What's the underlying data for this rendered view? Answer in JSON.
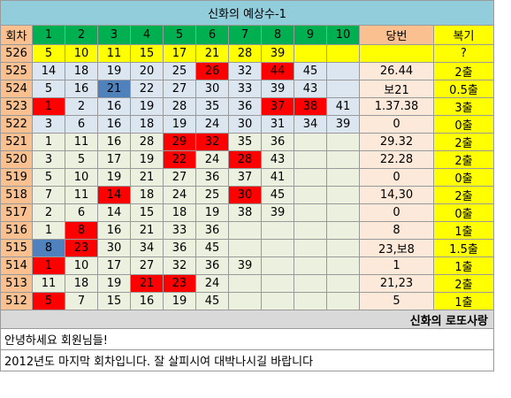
{
  "title": "신화의 예상수-1",
  "headers": {
    "round": "회차",
    "numbers": [
      "1",
      "2",
      "3",
      "4",
      "5",
      "6",
      "7",
      "8",
      "9",
      "10"
    ],
    "win": "당번",
    "reward": "복기"
  },
  "rows": [
    {
      "round": "526",
      "nums": [
        "5",
        "10",
        "11",
        "15",
        "17",
        "21",
        "28",
        "39",
        "",
        ""
      ],
      "win": "",
      "reward": "?",
      "hl": [
        "",
        "",
        "",
        "",
        "",
        "",
        "",
        "",
        "",
        ""
      ],
      "style": "first"
    },
    {
      "round": "525",
      "nums": [
        "14",
        "18",
        "19",
        "20",
        "25",
        "26",
        "32",
        "44",
        "45",
        ""
      ],
      "win": "26.44",
      "reward": "2출",
      "hl": [
        "",
        "",
        "",
        "",
        "",
        "r",
        "",
        "r",
        "",
        ""
      ],
      "style": "blue"
    },
    {
      "round": "524",
      "nums": [
        "5",
        "16",
        "21",
        "22",
        "27",
        "30",
        "33",
        "39",
        "43",
        ""
      ],
      "win": "보21",
      "reward": "0.5출",
      "hl": [
        "",
        "",
        "b",
        "",
        "",
        "",
        "",
        "",
        "",
        ""
      ],
      "style": "blue"
    },
    {
      "round": "523",
      "nums": [
        "1",
        "2",
        "16",
        "19",
        "28",
        "35",
        "36",
        "37",
        "38",
        "41"
      ],
      "win": "1.37.38",
      "reward": "3출",
      "hl": [
        "r",
        "",
        "",
        "",
        "",
        "",
        "",
        "r",
        "r",
        ""
      ],
      "style": "blue"
    },
    {
      "round": "522",
      "nums": [
        "3",
        "6",
        "16",
        "18",
        "19",
        "24",
        "30",
        "31",
        "34",
        "39"
      ],
      "win": "0",
      "reward": "0출",
      "hl": [
        "",
        "",
        "",
        "",
        "",
        "",
        "",
        "",
        "",
        ""
      ],
      "style": "blue"
    },
    {
      "round": "521",
      "nums": [
        "1",
        "11",
        "16",
        "28",
        "29",
        "32",
        "35",
        "36",
        "",
        ""
      ],
      "win": "29.32",
      "reward": "2출",
      "hl": [
        "",
        "",
        "",
        "",
        "r",
        "r",
        "",
        "",
        "",
        ""
      ],
      "style": "green"
    },
    {
      "round": "520",
      "nums": [
        "3",
        "5",
        "17",
        "19",
        "22",
        "24",
        "28",
        "43",
        "",
        ""
      ],
      "win": "22.28",
      "reward": "2출",
      "hl": [
        "",
        "",
        "",
        "",
        "r",
        "",
        "r",
        "",
        "",
        ""
      ],
      "style": "green"
    },
    {
      "round": "519",
      "nums": [
        "5",
        "10",
        "19",
        "21",
        "27",
        "36",
        "37",
        "41",
        "",
        ""
      ],
      "win": "0",
      "reward": "0출",
      "hl": [
        "",
        "",
        "",
        "",
        "",
        "",
        "",
        "",
        "",
        ""
      ],
      "style": "green"
    },
    {
      "round": "518",
      "nums": [
        "7",
        "11",
        "14",
        "18",
        "24",
        "25",
        "30",
        "45",
        "",
        ""
      ],
      "win": "14,30",
      "reward": "2출",
      "hl": [
        "",
        "",
        "r",
        "",
        "",
        "",
        "r",
        "",
        "",
        ""
      ],
      "style": "green"
    },
    {
      "round": "517",
      "nums": [
        "2",
        "6",
        "14",
        "15",
        "18",
        "19",
        "38",
        "39",
        "",
        ""
      ],
      "win": "0",
      "reward": "0출",
      "hl": [
        "",
        "",
        "",
        "",
        "",
        "",
        "",
        "",
        "",
        ""
      ],
      "style": "green"
    },
    {
      "round": "516",
      "nums": [
        "1",
        "8",
        "16",
        "21",
        "33",
        "36",
        "",
        "",
        "",
        ""
      ],
      "win": "8",
      "reward": "1출",
      "hl": [
        "",
        "r",
        "",
        "",
        "",
        "",
        "",
        "",
        "",
        ""
      ],
      "style": "green"
    },
    {
      "round": "515",
      "nums": [
        "8",
        "23",
        "30",
        "34",
        "36",
        "45",
        "",
        "",
        "",
        ""
      ],
      "win": "23,보8",
      "reward": "1.5출",
      "hl": [
        "b",
        "r",
        "",
        "",
        "",
        "",
        "",
        "",
        "",
        ""
      ],
      "style": "green"
    },
    {
      "round": "514",
      "nums": [
        "1",
        "10",
        "17",
        "27",
        "32",
        "36",
        "39",
        "",
        "",
        ""
      ],
      "win": "1",
      "reward": "1출",
      "hl": [
        "r",
        "",
        "",
        "",
        "",
        "",
        "",
        "",
        "",
        ""
      ],
      "style": "green"
    },
    {
      "round": "513",
      "nums": [
        "11",
        "18",
        "19",
        "21",
        "23",
        "24",
        "",
        "",
        "",
        ""
      ],
      "win": "21,23",
      "reward": "2출",
      "hl": [
        "",
        "",
        "",
        "r",
        "r",
        "",
        "",
        "",
        "",
        ""
      ],
      "style": "green"
    },
    {
      "round": "512",
      "nums": [
        "5",
        "7",
        "15",
        "16",
        "19",
        "45",
        "",
        "",
        "",
        ""
      ],
      "win": "5",
      "reward": "1출",
      "hl": [
        "r",
        "",
        "",
        "",
        "",
        "",
        "",
        "",
        "",
        ""
      ],
      "style": "green"
    }
  ],
  "signature": "신화의 로또사랑",
  "messages": [
    "안녕하세요 회원님들!",
    "2012년도 마지막 회차입니다.  잘 살피시여 대박나시길 바랍니다"
  ],
  "colors": {
    "title_bg": "#92cddc",
    "header_num_bg": "#00b050",
    "round_bg": "#fac090",
    "reward_bg": "#ffff00",
    "highlight_red": "#ff0000",
    "highlight_blue": "#4f81bd",
    "row_blue": "#dce6f1",
    "row_green": "#ebf1de"
  }
}
